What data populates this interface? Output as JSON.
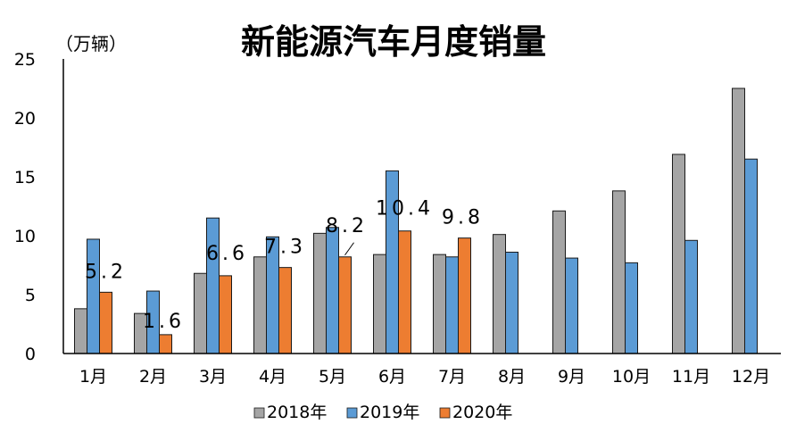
{
  "chart_data": {
    "type": "bar",
    "title": "新能源汽车月度销量",
    "unit_label": "（万辆）",
    "categories": [
      "1月",
      "2月",
      "3月",
      "4月",
      "5月",
      "6月",
      "7月",
      "8月",
      "9月",
      "10月",
      "11月",
      "12月"
    ],
    "series": [
      {
        "name": "2018年",
        "color": "#a5a5a5",
        "values": [
          3.8,
          3.4,
          6.8,
          8.2,
          10.2,
          8.4,
          8.4,
          10.1,
          12.1,
          13.8,
          16.9,
          22.5
        ]
      },
      {
        "name": "2019年",
        "color": "#5b9bd5",
        "values": [
          9.7,
          5.3,
          11.5,
          9.9,
          10.7,
          15.5,
          8.2,
          8.6,
          8.1,
          7.7,
          9.6,
          16.5
        ]
      },
      {
        "name": "2020年",
        "color": "#ed7d31",
        "values": [
          5.2,
          1.6,
          6.6,
          7.3,
          8.2,
          10.4,
          9.8,
          null,
          null,
          null,
          null,
          null
        ],
        "data_labels": [
          "5.2",
          "1.6",
          "6.6",
          "7.3",
          "8.2",
          "10.4",
          "9.8"
        ]
      }
    ],
    "ylim": [
      0,
      25
    ],
    "yticks": [
      "0",
      "5",
      "10",
      "15",
      "20",
      "25"
    ],
    "legend_position": "bottom",
    "grid": false
  }
}
